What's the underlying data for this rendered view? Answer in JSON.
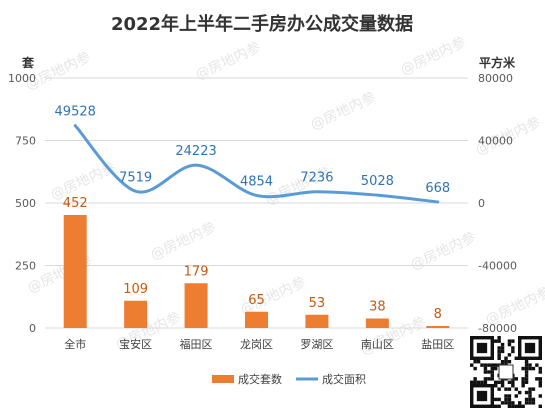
{
  "chart_data": {
    "type": "bar+line",
    "title": "2022年上半年二手房办公成交量数据",
    "categories": [
      "全市",
      "宝安区",
      "福田区",
      "龙岗区",
      "罗湖区",
      "南山区",
      "盐田区"
    ],
    "y_left": {
      "unit": "套",
      "ylim": [
        0,
        1000
      ],
      "ticks": [
        "0",
        "250",
        "500",
        "750",
        "1000"
      ]
    },
    "y_right": {
      "unit": "平方米",
      "ylim": [
        -80000,
        80000
      ],
      "ticks": [
        "-80000",
        "-40000",
        "0",
        "40000",
        "80000"
      ]
    },
    "series": [
      {
        "name": "成交套数",
        "type": "bar",
        "axis": "left",
        "color": "#ed7d31",
        "values": [
          452,
          109,
          179,
          65,
          53,
          38,
          8
        ],
        "labels": [
          "452",
          "109",
          "179",
          "65",
          "53",
          "38",
          "8"
        ]
      },
      {
        "name": "成交面积",
        "type": "line",
        "axis": "right",
        "color": "#5b9bd5",
        "values": [
          49528,
          7519,
          24223,
          4854,
          7236,
          5028,
          668
        ],
        "labels": [
          "49528",
          "7519",
          "24223",
          "4854",
          "7236",
          "5028",
          "668"
        ]
      }
    ],
    "grid": true,
    "legend": "bottom"
  },
  "watermark": "@房地内参",
  "qr_icon": "qr-code-icon"
}
